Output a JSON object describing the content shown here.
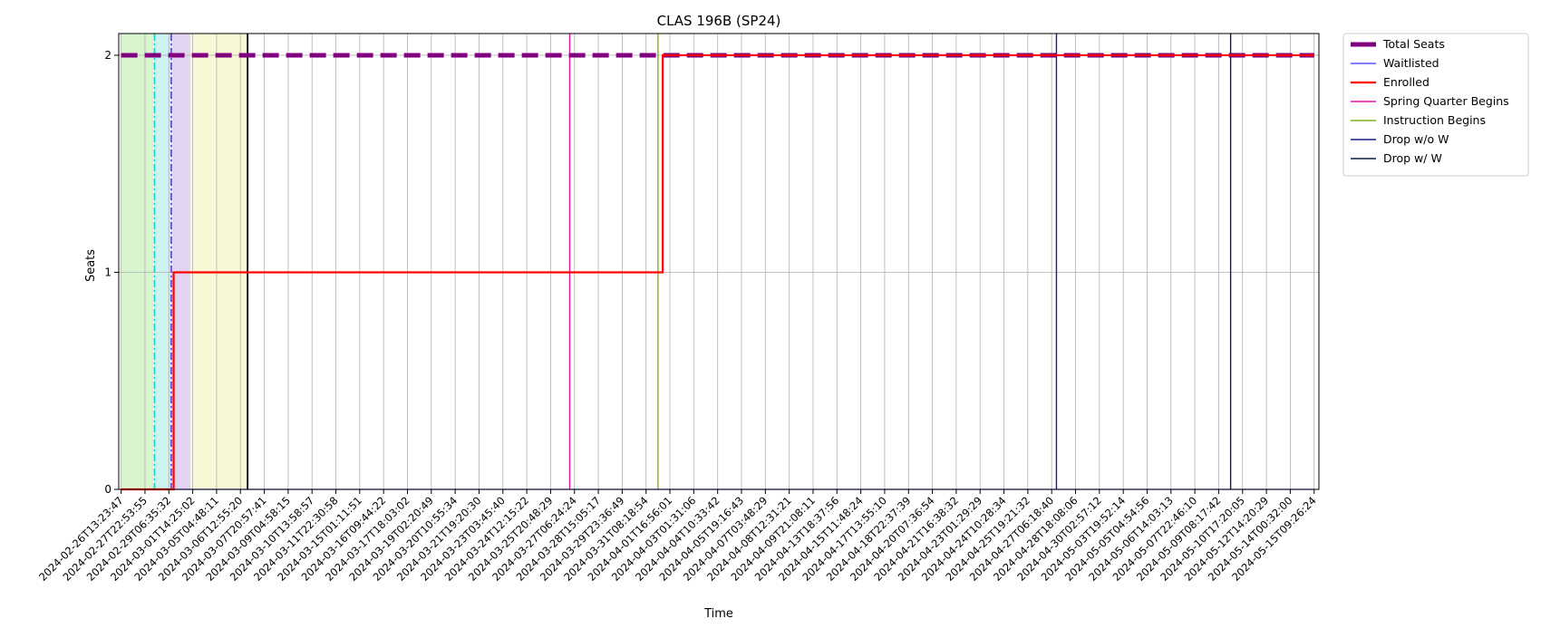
{
  "chart_data": {
    "type": "line",
    "title": "CLAS 196B (SP24)",
    "xlabel": "Time",
    "ylabel": "Seats",
    "ylim": [
      0,
      2.1
    ],
    "yticks": [
      "0",
      "1",
      "2"
    ],
    "grid": true,
    "legend_position": "outside-top-right",
    "x_ticks": [
      "2024-02-26T13:23:47",
      "2024-02-27T22:53:55",
      "2024-02-29T06:35:32",
      "2024-03-01T14:25:02",
      "2024-03-05T04:48:11",
      "2024-03-06T12:55:20",
      "2024-03-07T20:57:41",
      "2024-03-09T04:58:15",
      "2024-03-10T13:58:57",
      "2024-03-11T22:30:58",
      "2024-03-15T01:11:51",
      "2024-03-16T09:44:22",
      "2024-03-17T18:03:02",
      "2024-03-19T02:20:49",
      "2024-03-20T10:55:34",
      "2024-03-21T19:20:30",
      "2024-03-23T03:45:40",
      "2024-03-24T12:15:22",
      "2024-03-25T20:48:29",
      "2024-03-27T06:24:24",
      "2024-03-28T15:05:17",
      "2024-03-29T23:36:49",
      "2024-03-31T08:18:54",
      "2024-04-01T16:56:01",
      "2024-04-03T01:31:06",
      "2024-04-04T10:33:42",
      "2024-04-05T19:16:43",
      "2024-04-07T03:48:29",
      "2024-04-08T12:31:21",
      "2024-04-09T21:08:11",
      "2024-04-13T18:37:56",
      "2024-04-15T11:48:24",
      "2024-04-17T13:55:10",
      "2024-04-18T22:37:39",
      "2024-04-20T07:36:54",
      "2024-04-21T16:38:32",
      "2024-04-23T01:29:29",
      "2024-04-24T10:28:34",
      "2024-04-25T19:21:32",
      "2024-04-27T06:18:40",
      "2024-04-28T18:08:06",
      "2024-04-30T02:57:12",
      "2024-05-03T19:52:14",
      "2024-05-05T04:54:56",
      "2024-05-06T14:03:13",
      "2024-05-07T22:46:10",
      "2024-05-09T08:17:42",
      "2024-05-10T17:20:05",
      "2024-05-12T14:20:29",
      "2024-05-14T00:32:00",
      "2024-05-15T09:26:24"
    ],
    "series": [
      {
        "name": "Total Seats",
        "color": "#800080",
        "style": "dashed-thick",
        "points": [
          {
            "x": 0,
            "y": 2
          },
          {
            "x": 50,
            "y": 2
          }
        ]
      },
      {
        "name": "Waitlisted",
        "color": "#3333ff",
        "style": "solid-thin",
        "points": [
          {
            "x": 0,
            "y": 0
          },
          {
            "x": 50,
            "y": 0
          }
        ]
      },
      {
        "name": "Enrolled",
        "color": "#ff0000",
        "style": "step",
        "points": [
          {
            "x": 0,
            "y": 0
          },
          {
            "x": 2.2,
            "y": 0
          },
          {
            "x": 2.2,
            "y": 1
          },
          {
            "x": 22.7,
            "y": 1
          },
          {
            "x": 22.7,
            "y": 2
          },
          {
            "x": 50,
            "y": 2
          }
        ]
      }
    ],
    "event_lines": [
      {
        "name": "Spring Quarter Begins",
        "x": 18.8,
        "color": "#e0119d",
        "in_legend": true
      },
      {
        "name": "Instruction Begins",
        "x": 22.5,
        "color": "#7fb21a",
        "in_legend": true
      },
      {
        "name": "Drop w/o W",
        "x": 39.2,
        "color": "#1a1a8c",
        "in_legend": true
      },
      {
        "name": "Drop w/ W",
        "x": 46.5,
        "color": "#0a1a4a",
        "in_legend": true
      },
      {
        "name": "",
        "x": 5.3,
        "color": "#000000",
        "in_legend": false
      }
    ],
    "phase_bands": [
      {
        "from": 0,
        "to": 1.4,
        "color": "#d9f5d0"
      },
      {
        "from": 1.4,
        "to": 2.1,
        "color": "#cdf3f0"
      },
      {
        "from": 2.1,
        "to": 2.9,
        "color": "#e0d4f2"
      },
      {
        "from": 2.9,
        "to": 5.3,
        "color": "#f8f8d6"
      }
    ],
    "phase_markers": [
      {
        "x": 1.4,
        "color": "#1fc6c6",
        "style": "dashdot"
      },
      {
        "x": 2.1,
        "color": "#5a2fd6",
        "style": "dashdot"
      }
    ]
  }
}
